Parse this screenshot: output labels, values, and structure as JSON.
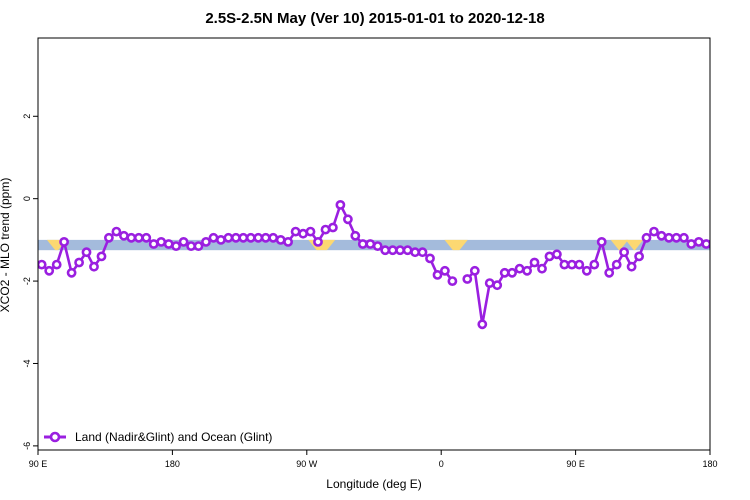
{
  "chart_data": {
    "type": "line",
    "title": "2.5S-2.5N May (Ver 10)   2015-01-01 to 2020-12-18",
    "xlabel": "Longitude (deg E)",
    "ylabel": "XCO2 - MLO trend (ppm)",
    "xlim": [
      90,
      450
    ],
    "ylim": [
      -6.1,
      3.9
    ],
    "x_ticks": [
      {
        "value": 90,
        "label": "90 E"
      },
      {
        "value": 162,
        "label": "180"
      },
      {
        "value": 234,
        "label": "90 W"
      },
      {
        "value": 306,
        "label": "0"
      },
      {
        "value": 378,
        "label": "90 E"
      },
      {
        "value": 450,
        "label": "180"
      }
    ],
    "y_ticks": [
      {
        "value": 2,
        "label": "2"
      },
      {
        "value": 0,
        "label": "0"
      },
      {
        "value": -2,
        "label": "-2"
      },
      {
        "value": -4,
        "label": "-4"
      },
      {
        "value": -6,
        "label": "-6"
      }
    ],
    "grid": false,
    "legend_position": "bottom-left",
    "land_sea_band": {
      "y_range": [
        -1.25,
        -1.0
      ],
      "ocean_color": "#a4bbdc",
      "land_color": "#fcd872",
      "land_segments": [
        [
          97,
          103
        ],
        [
          237,
          247
        ],
        [
          310,
          318
        ],
        [
          399,
          404
        ],
        [
          407,
          412
        ]
      ]
    },
    "series": [
      {
        "name": "Land (Nadir&Glint) and Ocean (Glint)",
        "color": "#9a1fe0",
        "x": [
          92,
          96,
          100,
          104,
          108,
          112,
          116,
          120,
          124,
          128,
          132,
          136,
          140,
          144,
          148,
          152,
          156,
          160,
          164,
          168,
          172,
          176,
          180,
          184,
          188,
          192,
          196,
          200,
          204,
          208,
          212,
          216,
          220,
          224,
          228,
          232,
          236,
          240,
          244,
          248,
          252,
          256,
          260,
          264,
          268,
          272,
          276,
          280,
          284,
          288,
          292,
          296,
          300,
          304,
          308,
          312,
          316,
          320,
          324,
          328,
          332,
          336,
          340,
          344,
          348,
          352,
          356,
          360,
          364,
          368,
          372,
          376,
          380,
          384,
          388,
          392,
          396,
          400,
          404,
          408,
          412,
          416,
          420,
          424,
          428,
          432,
          436,
          440,
          444,
          448,
          452
        ],
        "y": [
          -1.6,
          -1.75,
          -1.6,
          -1.05,
          -1.8,
          -1.55,
          -1.3,
          -1.65,
          -1.4,
          -0.95,
          -0.8,
          -0.9,
          -0.95,
          -0.95,
          -0.95,
          -1.1,
          -1.05,
          -1.1,
          -1.15,
          -1.05,
          -1.15,
          -1.15,
          -1.05,
          -0.95,
          -1.0,
          -0.95,
          -0.95,
          -0.95,
          -0.95,
          -0.95,
          -0.95,
          -0.95,
          -1.0,
          -1.05,
          -0.8,
          -0.85,
          -0.8,
          -1.05,
          -0.75,
          -0.7,
          -0.15,
          -0.5,
          -0.9,
          -1.1,
          -1.1,
          -1.15,
          -1.25,
          -1.25,
          -1.25,
          -1.25,
          -1.3,
          -1.3,
          -1.45,
          -1.85,
          -1.75,
          -2.0,
          null,
          -1.95,
          -1.75,
          -3.05,
          -2.05,
          -2.1,
          -1.8,
          -1.8,
          -1.7,
          -1.75,
          -1.55,
          -1.7,
          -1.4,
          -1.35,
          -1.6,
          -1.6,
          -1.6,
          -1.75,
          -1.6,
          -1.05,
          -1.8,
          -1.6,
          -1.3,
          -1.65,
          -1.4,
          -0.95,
          -0.8,
          -0.9,
          -0.95,
          -0.95,
          -0.95,
          -1.1,
          -1.05,
          -1.1,
          -1.15
        ]
      }
    ]
  }
}
